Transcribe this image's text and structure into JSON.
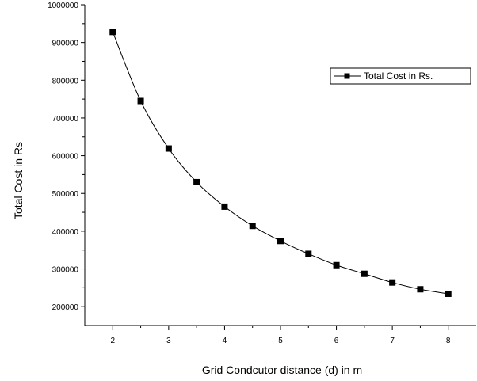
{
  "chart_data": {
    "type": "line",
    "xlabel": "Grid Condcutor distance (d) in m",
    "ylabel": "Total Cost in Rs",
    "xlim": [
      1.5,
      8.5
    ],
    "ylim": [
      150000,
      1000000
    ],
    "x_ticks": [
      2,
      3,
      4,
      5,
      6,
      7,
      8
    ],
    "y_ticks": [
      200000,
      300000,
      400000,
      500000,
      600000,
      700000,
      800000,
      900000,
      1000000
    ],
    "grid": false,
    "legend_position": "top-right",
    "series": [
      {
        "name": "Total Cost in Rs.",
        "color": "#000000",
        "marker": "square",
        "x": [
          2,
          2.5,
          3,
          3.5,
          4,
          4.5,
          5,
          5.5,
          6,
          6.5,
          7,
          7.5,
          8
        ],
        "y": [
          928000,
          745000,
          619000,
          530000,
          465000,
          414000,
          374000,
          340000,
          310000,
          287000,
          264000,
          246000,
          234000
        ]
      }
    ]
  }
}
